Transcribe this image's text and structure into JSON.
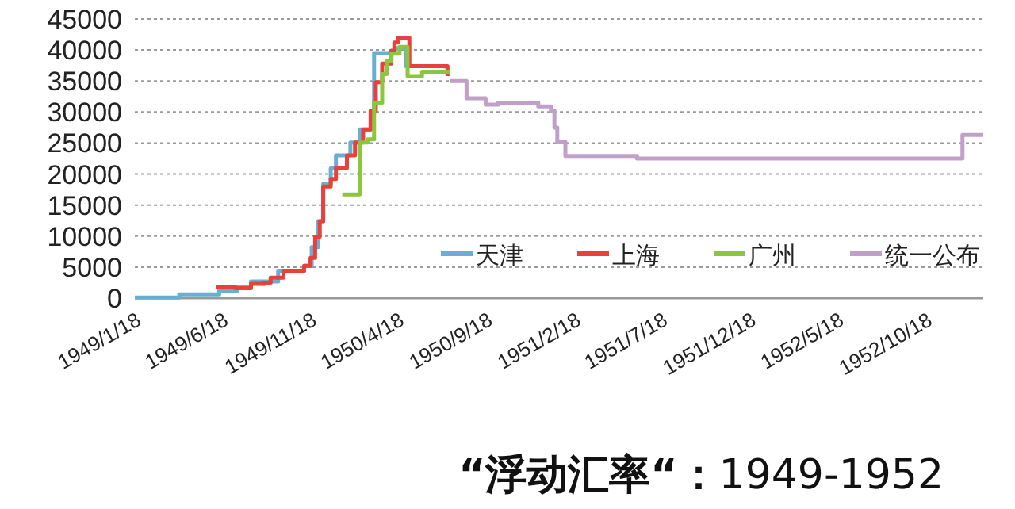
{
  "chart_data": {
    "type": "step",
    "title": "**“浮动汇率“：**1949-1952",
    "xlim": [
      "1949-01-18",
      "1953-01-25"
    ],
    "ylim": [
      0,
      45000
    ],
    "xticks": [
      {
        "value": "1949-01-18",
        "label": "1949/1/18"
      },
      {
        "value": "1949-06-18",
        "label": "1949/6/18"
      },
      {
        "value": "1949-11-18",
        "label": "1949/11/18"
      },
      {
        "value": "1950-04-18",
        "label": "1950/4/18"
      },
      {
        "value": "1950-09-18",
        "label": "1950/9/18"
      },
      {
        "value": "1951-02-18",
        "label": "1951/2/18"
      },
      {
        "value": "1951-07-18",
        "label": "1951/7/18"
      },
      {
        "value": "1951-12-18",
        "label": "1951/12/18"
      },
      {
        "value": "1952-05-18",
        "label": "1952/5/18"
      },
      {
        "value": "1952-10-18",
        "label": "1952/10/18"
      }
    ],
    "yticks": [
      0,
      5000,
      10000,
      15000,
      20000,
      25000,
      30000,
      35000,
      40000,
      45000
    ],
    "grid": "y",
    "legend": "bottom",
    "series": [
      {
        "name": "天津",
        "color": "#6aaed6",
        "x": [
          "1949-01-18",
          "1949-04-05",
          "1949-06-13",
          "1949-07-15",
          "1949-08-07",
          "1949-09-23",
          "1949-11-07",
          "1949-11-20",
          "1949-12-01",
          "1949-12-10",
          "1949-12-23",
          "1950-01-01",
          "1950-01-26",
          "1950-02-11",
          "1950-03-02",
          "1950-03-08",
          "1950-04-13",
          "1950-05-02",
          "1950-07-10"
        ],
        "values": [
          100,
          600,
          1200,
          1800,
          2700,
          4400,
          5200,
          8200,
          12400,
          18400,
          20900,
          23000,
          25100,
          27200,
          29800,
          39500,
          40300,
          37400,
          37000
        ]
      },
      {
        "name": "上海",
        "color": "#e8413b",
        "x": [
          "1949-06-08",
          "1949-07-11",
          "1949-08-07",
          "1949-08-30",
          "1949-09-10",
          "1949-10-02",
          "1949-11-07",
          "1949-11-18",
          "1949-11-26",
          "1949-12-04",
          "1949-12-10",
          "1949-12-23",
          "1950-01-01",
          "1950-01-20",
          "1950-02-03",
          "1950-02-17",
          "1950-03-02",
          "1950-03-11",
          "1950-03-22",
          "1950-04-07",
          "1950-04-12",
          "1950-04-18",
          "1950-05-08",
          "1950-07-13"
        ],
        "values": [
          1800,
          1600,
          2300,
          2500,
          3300,
          4400,
          5200,
          6500,
          9900,
          12400,
          18000,
          19200,
          21000,
          23000,
          25100,
          27200,
          30200,
          34800,
          37800,
          39900,
          41200,
          42000,
          37400,
          35800
        ]
      },
      {
        "name": "广州",
        "color": "#8cc63f",
        "x": [
          "1950-01-12",
          "1950-02-11",
          "1950-02-25",
          "1950-03-08",
          "1950-03-22",
          "1950-03-30",
          "1950-04-07",
          "1950-04-21",
          "1950-05-05",
          "1950-05-30",
          "1950-07-18"
        ],
        "values": [
          16700,
          25100,
          25600,
          31500,
          36100,
          38200,
          39400,
          40500,
          35800,
          36500,
          36500
        ]
      },
      {
        "name": "统一公布",
        "color": "#c0a0c8",
        "x": [
          "1950-07-18",
          "1950-08-15",
          "1950-09-17",
          "1950-10-09",
          "1950-12-17",
          "1951-01-08",
          "1951-01-14",
          "1951-01-19",
          "1951-02-02",
          "1951-06-06",
          "1952-12-20",
          "1953-01-25"
        ],
        "values": [
          35000,
          32200,
          31200,
          31500,
          30900,
          30200,
          27500,
          25200,
          22900,
          22500,
          26300,
          26300
        ]
      }
    ]
  }
}
